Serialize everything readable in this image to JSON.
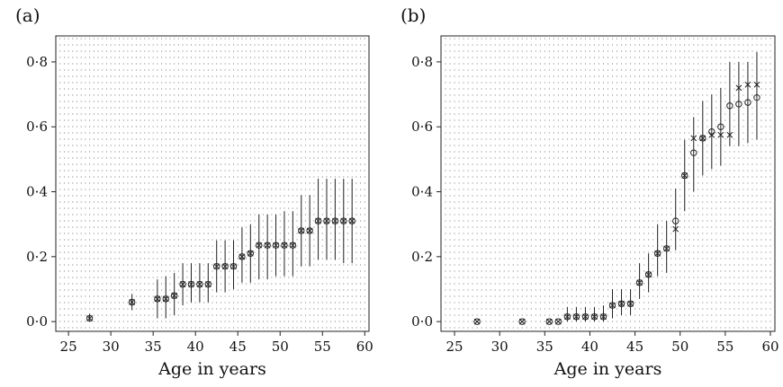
{
  "chart_data": [
    {
      "type": "scatter",
      "panel_label": "(a)",
      "xlabel": "Age in years",
      "ylabel": "",
      "xlim": [
        23.5,
        60.5
      ],
      "ylim": [
        -0.03,
        0.88
      ],
      "xticks": [
        25,
        30,
        35,
        40,
        45,
        50,
        55,
        60
      ],
      "xtick_labels": [
        "25",
        "30",
        "35",
        "40",
        "45",
        "50",
        "55",
        "60"
      ],
      "yticks": [
        0.0,
        0.2,
        0.4,
        0.6,
        0.8
      ],
      "ytick_labels": [
        "0·0",
        "0·2",
        "0·4",
        "0·6",
        "0·8"
      ],
      "grid": "dotted",
      "x": [
        27.5,
        32.5,
        35.5,
        36.5,
        37.5,
        38.5,
        39.5,
        40.5,
        41.5,
        42.5,
        43.5,
        44.5,
        45.5,
        46.5,
        47.5,
        48.5,
        49.5,
        50.5,
        51.5,
        52.5,
        53.5,
        54.5,
        55.5,
        56.5,
        57.5,
        58.5
      ],
      "series": [
        {
          "marker": "circle",
          "values": [
            0.01,
            0.06,
            0.07,
            0.07,
            0.08,
            0.115,
            0.115,
            0.115,
            0.115,
            0.17,
            0.17,
            0.17,
            0.2,
            0.21,
            0.235,
            0.235,
            0.235,
            0.235,
            0.235,
            0.28,
            0.28,
            0.31,
            0.31,
            0.31,
            0.31,
            0.31
          ],
          "lower": [
            0.0,
            0.035,
            0.01,
            0.01,
            0.02,
            0.05,
            0.06,
            0.06,
            0.06,
            0.09,
            0.09,
            0.1,
            0.12,
            0.12,
            0.13,
            0.13,
            0.14,
            0.14,
            0.14,
            0.17,
            0.17,
            0.19,
            0.19,
            0.19,
            0.18,
            0.18
          ],
          "upper": [
            0.025,
            0.085,
            0.13,
            0.14,
            0.15,
            0.18,
            0.18,
            0.18,
            0.18,
            0.25,
            0.25,
            0.25,
            0.29,
            0.3,
            0.33,
            0.33,
            0.33,
            0.34,
            0.34,
            0.39,
            0.39,
            0.44,
            0.44,
            0.44,
            0.44,
            0.44
          ]
        },
        {
          "marker": "cross",
          "values": [
            0.01,
            0.06,
            0.07,
            0.07,
            0.08,
            0.115,
            0.115,
            0.115,
            0.115,
            0.17,
            0.17,
            0.17,
            0.2,
            0.21,
            0.235,
            0.235,
            0.235,
            0.235,
            0.235,
            0.28,
            0.28,
            0.31,
            0.31,
            0.31,
            0.31,
            0.31
          ]
        }
      ]
    },
    {
      "type": "scatter",
      "panel_label": "(b)",
      "xlabel": "Age in years",
      "ylabel": "",
      "xlim": [
        23.5,
        60.5
      ],
      "ylim": [
        -0.03,
        0.88
      ],
      "xticks": [
        25,
        30,
        35,
        40,
        45,
        50,
        55,
        60
      ],
      "xtick_labels": [
        "25",
        "30",
        "35",
        "40",
        "45",
        "50",
        "55",
        "60"
      ],
      "yticks": [
        0.0,
        0.2,
        0.4,
        0.6,
        0.8
      ],
      "ytick_labels": [
        "0·0",
        "0·2",
        "0·4",
        "0·6",
        "0·8"
      ],
      "grid": "dotted",
      "x": [
        27.5,
        32.5,
        35.5,
        36.5,
        37.5,
        38.5,
        39.5,
        40.5,
        41.5,
        42.5,
        43.5,
        44.5,
        45.5,
        46.5,
        47.5,
        48.5,
        49.5,
        50.5,
        51.5,
        52.5,
        53.5,
        54.5,
        55.5,
        56.5,
        57.5,
        58.5
      ],
      "series": [
        {
          "marker": "circle",
          "values": [
            0.0,
            0.0,
            0.0,
            0.0,
            0.015,
            0.015,
            0.015,
            0.015,
            0.015,
            0.05,
            0.055,
            0.055,
            0.12,
            0.145,
            0.21,
            0.225,
            0.31,
            0.45,
            0.52,
            0.565,
            0.585,
            0.6,
            0.665,
            0.67,
            0.675,
            0.69
          ],
          "lower": [
            0.0,
            0.0,
            0.0,
            0.0,
            0.0,
            0.0,
            0.0,
            0.0,
            0.0,
            0.01,
            0.02,
            0.02,
            0.07,
            0.09,
            0.14,
            0.15,
            0.22,
            0.34,
            0.4,
            0.45,
            0.47,
            0.48,
            0.54,
            0.54,
            0.55,
            0.56
          ],
          "upper": [
            0.0,
            0.0,
            0.0,
            0.0,
            0.045,
            0.045,
            0.045,
            0.045,
            0.05,
            0.1,
            0.1,
            0.1,
            0.18,
            0.21,
            0.3,
            0.31,
            0.41,
            0.56,
            0.63,
            0.68,
            0.7,
            0.72,
            0.8,
            0.8,
            0.8,
            0.83
          ]
        },
        {
          "marker": "cross",
          "values": [
            0.0,
            0.0,
            0.0,
            0.0,
            0.015,
            0.015,
            0.015,
            0.015,
            0.015,
            0.05,
            0.055,
            0.055,
            0.12,
            0.145,
            0.21,
            0.225,
            0.285,
            0.45,
            0.565,
            0.565,
            0.575,
            0.575,
            0.575,
            0.72,
            0.73,
            0.73
          ]
        }
      ]
    }
  ]
}
